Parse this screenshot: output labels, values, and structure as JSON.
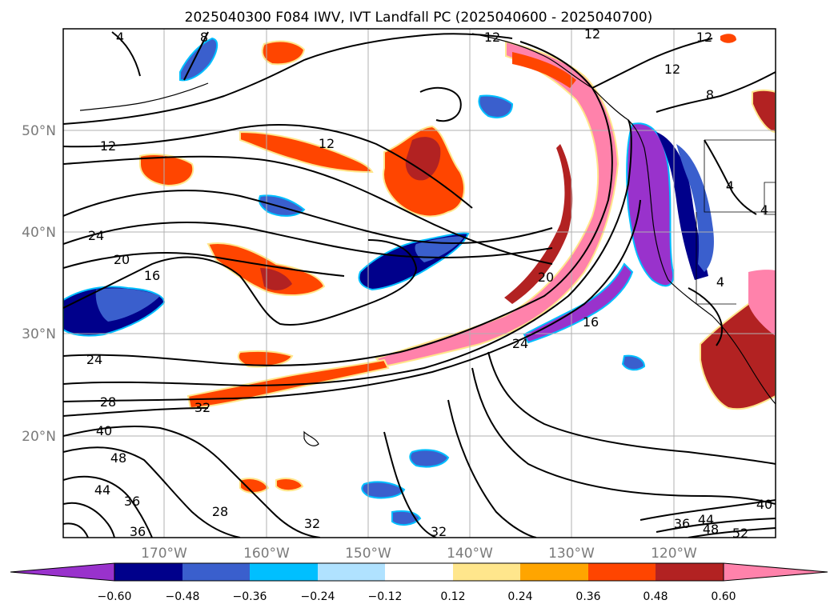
{
  "title": "2025040300 F084 IWV, IVT Landfall PC (2025040600 - 2025040700)",
  "lat_labels": [
    "50°N",
    "40°N",
    "30°N",
    "20°N"
  ],
  "lon_labels": [
    "170°W",
    "160°W",
    "150°W",
    "140°W",
    "130°W",
    "120°W"
  ],
  "colorbar": {
    "tick_labels": [
      "−0.60",
      "−0.48",
      "−0.36",
      "−0.24",
      "−0.12",
      "0.12",
      "0.24",
      "0.36",
      "0.48",
      "0.60"
    ],
    "colors": [
      "#9932cc",
      "#00008b",
      "#3a5fcd",
      "#00bfff",
      "#b0e2ff",
      "#ffffff",
      "#ffe68c",
      "#ffa500",
      "#ff4500",
      "#b22222",
      "#ff82ab"
    ]
  },
  "contour_labels": [
    {
      "text": "4"
    },
    {
      "text": "8"
    },
    {
      "text": "12"
    },
    {
      "text": "12"
    },
    {
      "text": "12"
    },
    {
      "text": "12"
    },
    {
      "text": "12"
    },
    {
      "text": "12"
    },
    {
      "text": "8"
    },
    {
      "text": "4"
    },
    {
      "text": "4"
    },
    {
      "text": "4"
    },
    {
      "text": "24"
    },
    {
      "text": "20"
    },
    {
      "text": "16"
    },
    {
      "text": "24"
    },
    {
      "text": "28"
    },
    {
      "text": "32"
    },
    {
      "text": "40"
    },
    {
      "text": "48"
    },
    {
      "text": "44"
    },
    {
      "text": "36"
    },
    {
      "text": "36"
    },
    {
      "text": "28"
    },
    {
      "text": "32"
    },
    {
      "text": "32"
    },
    {
      "text": "20"
    },
    {
      "text": "24"
    },
    {
      "text": "16"
    },
    {
      "text": "40"
    },
    {
      "text": "36"
    },
    {
      "text": "44"
    },
    {
      "text": "48"
    },
    {
      "text": "52"
    }
  ]
}
